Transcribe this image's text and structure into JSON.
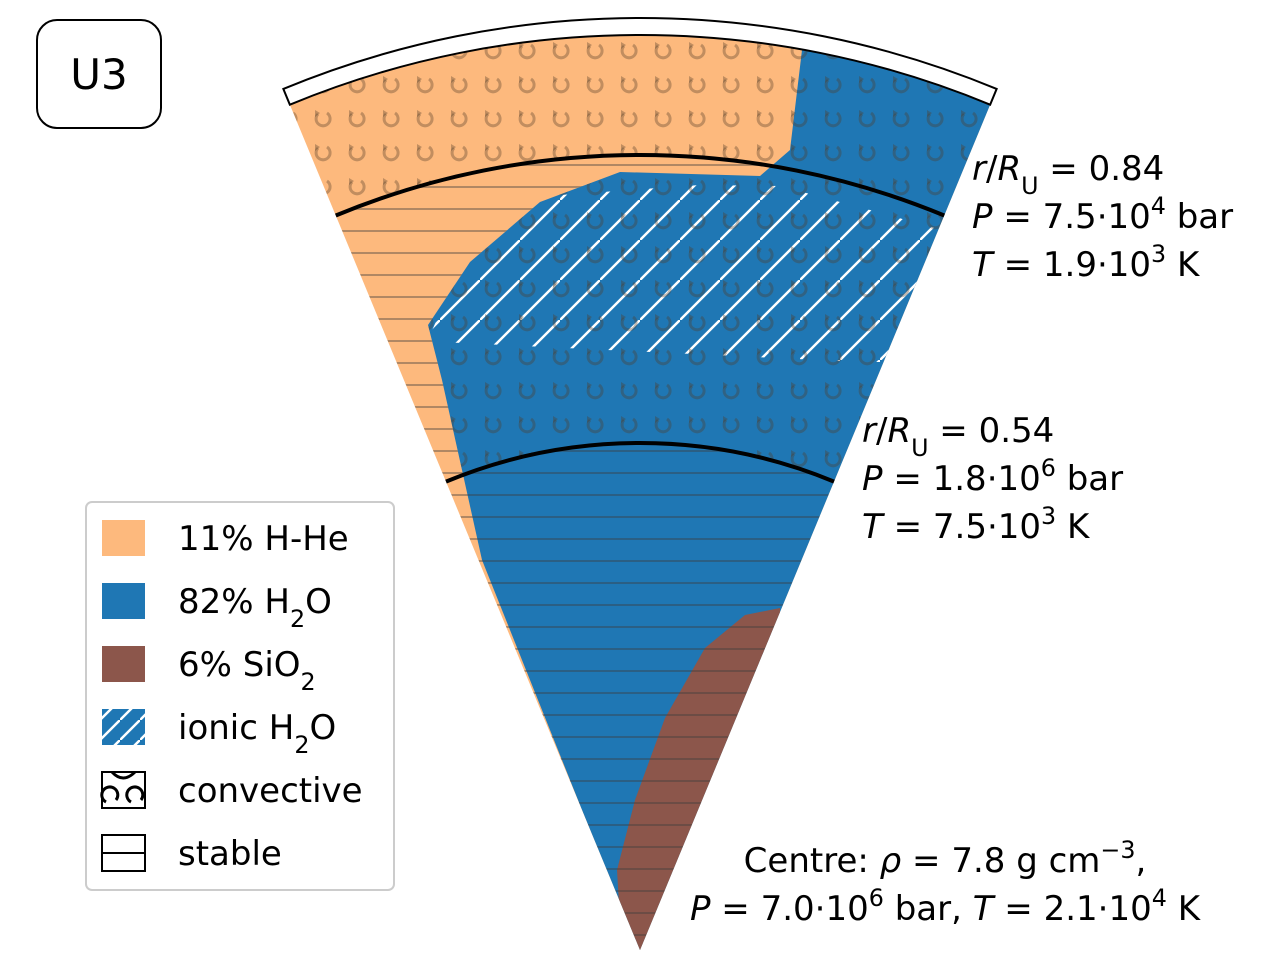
{
  "panel_label": "U3",
  "boundaries": [
    {
      "lines": [
        [
          {
            "t": "r",
            "s": "i"
          },
          {
            "t": "/"
          },
          {
            "t": "R",
            "s": "i"
          },
          {
            "t": "U",
            "s": "sub"
          },
          {
            "t": " = 0.84"
          }
        ],
        [
          {
            "t": "P",
            "s": "i"
          },
          {
            "t": " = 7.5·10"
          },
          {
            "t": "4",
            "s": "sup"
          },
          {
            "t": " bar"
          }
        ],
        [
          {
            "t": "T",
            "s": "i"
          },
          {
            "t": " = 1.9·10"
          },
          {
            "t": "3",
            "s": "sup"
          },
          {
            "t": " K"
          }
        ]
      ]
    },
    {
      "lines": [
        [
          {
            "t": "r",
            "s": "i"
          },
          {
            "t": "/"
          },
          {
            "t": "R",
            "s": "i"
          },
          {
            "t": "U",
            "s": "sub"
          },
          {
            "t": " = 0.54"
          }
        ],
        [
          {
            "t": "P",
            "s": "i"
          },
          {
            "t": " = 1.8·10"
          },
          {
            "t": "6",
            "s": "sup"
          },
          {
            "t": " bar"
          }
        ],
        [
          {
            "t": "T",
            "s": "i"
          },
          {
            "t": " = 7.5·10"
          },
          {
            "t": "3",
            "s": "sup"
          },
          {
            "t": " K"
          }
        ]
      ]
    }
  ],
  "centre": {
    "lines": [
      [
        {
          "t": "Centre: "
        },
        {
          "t": "ρ",
          "s": "i"
        },
        {
          "t": " = 7.8 g cm"
        },
        {
          "t": "−3",
          "s": "sup"
        },
        {
          "t": ","
        }
      ],
      [
        {
          "t": "P",
          "s": "i"
        },
        {
          "t": " = 7.0·10"
        },
        {
          "t": "6",
          "s": "sup"
        },
        {
          "t": " bar, "
        },
        {
          "t": "T",
          "s": "i"
        },
        {
          "t": " = 2.1·10"
        },
        {
          "t": "4",
          "s": "sup"
        },
        {
          "t": " K"
        }
      ]
    ]
  },
  "legend": [
    {
      "swatch": "fill",
      "color": "#fdb97d",
      "label": [
        {
          "t": "11% H-He"
        }
      ]
    },
    {
      "swatch": "fill",
      "color": "#1f77b4",
      "label": [
        {
          "t": "82% H"
        },
        {
          "t": "2",
          "s": "sub"
        },
        {
          "t": "O"
        }
      ]
    },
    {
      "swatch": "fill",
      "color": "#8c564b",
      "label": [
        {
          "t": "6% SiO"
        },
        {
          "t": "2",
          "s": "sub"
        }
      ]
    },
    {
      "swatch": "hatch",
      "color": "#1f77b4",
      "label": [
        {
          "t": "ionic H"
        },
        {
          "t": "2",
          "s": "sub"
        },
        {
          "t": "O"
        }
      ]
    },
    {
      "swatch": "convective",
      "label": [
        {
          "t": "convective"
        }
      ]
    },
    {
      "swatch": "stable",
      "label": [
        {
          "t": "stable"
        }
      ]
    }
  ]
}
